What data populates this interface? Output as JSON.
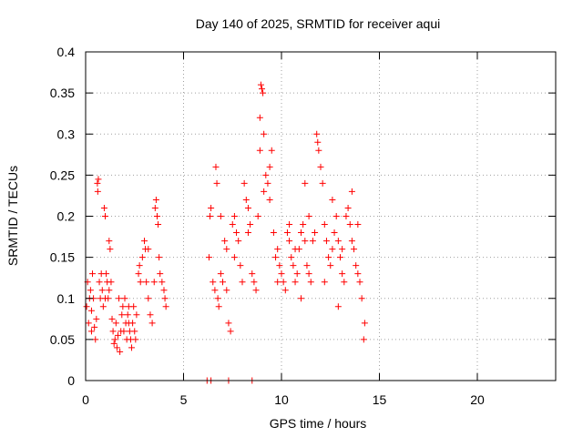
{
  "chart_data": {
    "type": "scatter",
    "title": "Day 140 of 2025, SRMTID for receiver aqui",
    "xlabel": "GPS time / hours",
    "ylabel": "SRMTID / TECUs",
    "xlim": [
      0,
      24
    ],
    "ylim": [
      0,
      0.4
    ],
    "xticks": [
      0,
      5,
      10,
      15,
      20
    ],
    "yticks": [
      0,
      0.05,
      0.1,
      0.15,
      0.2,
      0.25,
      0.3,
      0.35,
      0.4
    ],
    "xtick_labels": [
      "0",
      "5",
      "10",
      "15",
      "20"
    ],
    "ytick_labels": [
      "0",
      "0.05",
      "0.1",
      "0.15",
      "0.2",
      "0.25",
      "0.3",
      "0.35",
      "0.4"
    ],
    "grid": true,
    "marker": "+",
    "marker_color": "#ff0000",
    "series": [
      {
        "name": "SRMTID",
        "points": [
          [
            0.05,
            0.09
          ],
          [
            0.1,
            0.12
          ],
          [
            0.15,
            0.07
          ],
          [
            0.2,
            0.1
          ],
          [
            0.25,
            0.11
          ],
          [
            0.3,
            0.085
          ],
          [
            0.35,
            0.13
          ],
          [
            0.4,
            0.1
          ],
          [
            0.45,
            0.065
          ],
          [
            0.5,
            0.05
          ],
          [
            0.55,
            0.075
          ],
          [
            0.6,
            0.24
          ],
          [
            0.62,
            0.23
          ],
          [
            0.65,
            0.245
          ],
          [
            0.7,
            0.12
          ],
          [
            0.75,
            0.1
          ],
          [
            0.8,
            0.13
          ],
          [
            0.85,
            0.11
          ],
          [
            0.9,
            0.09
          ],
          [
            0.95,
            0.21
          ],
          [
            1.0,
            0.2
          ],
          [
            1.05,
            0.13
          ],
          [
            1.1,
            0.12
          ],
          [
            1.15,
            0.1
          ],
          [
            1.2,
            0.17
          ],
          [
            1.25,
            0.16
          ],
          [
            1.3,
            0.12
          ],
          [
            1.35,
            0.075
          ],
          [
            1.4,
            0.06
          ],
          [
            1.45,
            0.045
          ],
          [
            1.5,
            0.05
          ],
          [
            1.55,
            0.07
          ],
          [
            1.6,
            0.04
          ],
          [
            1.65,
            0.055
          ],
          [
            1.7,
            0.1
          ],
          [
            1.75,
            0.035
          ],
          [
            1.8,
            0.06
          ],
          [
            1.85,
            0.08
          ],
          [
            1.9,
            0.09
          ],
          [
            1.95,
            0.06
          ],
          [
            2.0,
            0.1
          ],
          [
            2.05,
            0.07
          ],
          [
            2.1,
            0.05
          ],
          [
            2.15,
            0.08
          ],
          [
            2.2,
            0.09
          ],
          [
            2.25,
            0.06
          ],
          [
            2.3,
            0.05
          ],
          [
            2.35,
            0.04
          ],
          [
            2.4,
            0.07
          ],
          [
            2.45,
            0.09
          ],
          [
            2.5,
            0.06
          ],
          [
            2.55,
            0.05
          ],
          [
            2.6,
            0.08
          ],
          [
            2.7,
            0.13
          ],
          [
            2.75,
            0.14
          ],
          [
            2.8,
            0.12
          ],
          [
            2.9,
            0.15
          ],
          [
            3.0,
            0.17
          ],
          [
            3.05,
            0.16
          ],
          [
            3.1,
            0.12
          ],
          [
            3.2,
            0.1
          ],
          [
            3.3,
            0.08
          ],
          [
            3.4,
            0.07
          ],
          [
            3.5,
            0.12
          ],
          [
            3.55,
            0.21
          ],
          [
            3.6,
            0.22
          ],
          [
            3.65,
            0.2
          ],
          [
            3.7,
            0.19
          ],
          [
            3.75,
            0.15
          ],
          [
            3.8,
            0.13
          ],
          [
            3.9,
            0.12
          ],
          [
            4.0,
            0.11
          ],
          [
            4.05,
            0.1
          ],
          [
            4.1,
            0.09
          ],
          [
            6.2,
            0.0
          ],
          [
            6.4,
            0.0
          ],
          [
            7.3,
            0.0
          ],
          [
            8.5,
            0.0
          ],
          [
            6.3,
            0.15
          ],
          [
            6.35,
            0.2
          ],
          [
            6.4,
            0.21
          ],
          [
            6.5,
            0.12
          ],
          [
            6.6,
            0.11
          ],
          [
            6.65,
            0.26
          ],
          [
            6.7,
            0.24
          ],
          [
            6.75,
            0.1
          ],
          [
            6.8,
            0.09
          ],
          [
            6.9,
            0.13
          ],
          [
            7.0,
            0.12
          ],
          [
            7.1,
            0.17
          ],
          [
            7.2,
            0.16
          ],
          [
            7.3,
            0.07
          ],
          [
            7.4,
            0.06
          ],
          [
            7.5,
            0.19
          ],
          [
            7.6,
            0.2
          ],
          [
            7.7,
            0.18
          ],
          [
            7.8,
            0.17
          ],
          [
            7.9,
            0.14
          ],
          [
            8.0,
            0.12
          ],
          [
            8.1,
            0.24
          ],
          [
            8.2,
            0.22
          ],
          [
            8.3,
            0.21
          ],
          [
            8.4,
            0.19
          ],
          [
            8.5,
            0.13
          ],
          [
            8.6,
            0.12
          ],
          [
            8.7,
            0.11
          ],
          [
            8.8,
            0.2
          ],
          [
            8.9,
            0.32
          ],
          [
            8.95,
            0.36
          ],
          [
            9.0,
            0.355
          ],
          [
            9.05,
            0.35
          ],
          [
            9.1,
            0.3
          ],
          [
            9.2,
            0.25
          ],
          [
            9.3,
            0.24
          ],
          [
            9.4,
            0.22
          ],
          [
            9.5,
            0.28
          ],
          [
            9.6,
            0.18
          ],
          [
            9.7,
            0.15
          ],
          [
            9.8,
            0.16
          ],
          [
            9.9,
            0.14
          ],
          [
            10.0,
            0.13
          ],
          [
            10.1,
            0.12
          ],
          [
            10.2,
            0.11
          ],
          [
            10.3,
            0.18
          ],
          [
            10.4,
            0.17
          ],
          [
            10.5,
            0.15
          ],
          [
            10.6,
            0.14
          ],
          [
            10.7,
            0.12
          ],
          [
            10.8,
            0.13
          ],
          [
            10.9,
            0.16
          ],
          [
            11.0,
            0.18
          ],
          [
            11.1,
            0.19
          ],
          [
            11.2,
            0.17
          ],
          [
            11.3,
            0.14
          ],
          [
            11.4,
            0.13
          ],
          [
            11.5,
            0.12
          ],
          [
            11.6,
            0.17
          ],
          [
            11.7,
            0.18
          ],
          [
            11.8,
            0.3
          ],
          [
            11.85,
            0.29
          ],
          [
            11.9,
            0.28
          ],
          [
            12.0,
            0.26
          ],
          [
            12.1,
            0.24
          ],
          [
            12.2,
            0.19
          ],
          [
            12.3,
            0.17
          ],
          [
            12.4,
            0.15
          ],
          [
            12.5,
            0.14
          ],
          [
            12.6,
            0.16
          ],
          [
            12.7,
            0.18
          ],
          [
            12.8,
            0.2
          ],
          [
            12.9,
            0.17
          ],
          [
            13.0,
            0.15
          ],
          [
            13.1,
            0.13
          ],
          [
            13.2,
            0.12
          ],
          [
            13.3,
            0.2
          ],
          [
            13.4,
            0.21
          ],
          [
            13.5,
            0.19
          ],
          [
            13.6,
            0.17
          ],
          [
            13.7,
            0.16
          ],
          [
            13.8,
            0.14
          ],
          [
            13.9,
            0.13
          ],
          [
            14.0,
            0.12
          ],
          [
            14.1,
            0.1
          ],
          [
            14.2,
            0.05
          ],
          [
            14.25,
            0.07
          ],
          [
            0.3,
            0.06
          ],
          [
            1.0,
            0.1
          ],
          [
            1.2,
            0.11
          ],
          [
            2.2,
            0.07
          ],
          [
            3.2,
            0.16
          ],
          [
            6.9,
            0.2
          ],
          [
            7.6,
            0.15
          ],
          [
            8.3,
            0.18
          ],
          [
            9.4,
            0.26
          ],
          [
            10.4,
            0.19
          ],
          [
            11.4,
            0.2
          ],
          [
            12.6,
            0.22
          ],
          [
            13.6,
            0.23
          ],
          [
            13.9,
            0.19
          ],
          [
            7.2,
            0.11
          ],
          [
            9.8,
            0.12
          ],
          [
            10.7,
            0.16
          ],
          [
            11.2,
            0.24
          ],
          [
            12.2,
            0.12
          ],
          [
            13.1,
            0.16
          ],
          [
            8.9,
            0.28
          ],
          [
            9.1,
            0.23
          ],
          [
            11.0,
            0.1
          ],
          [
            12.9,
            0.09
          ]
        ]
      }
    ]
  }
}
